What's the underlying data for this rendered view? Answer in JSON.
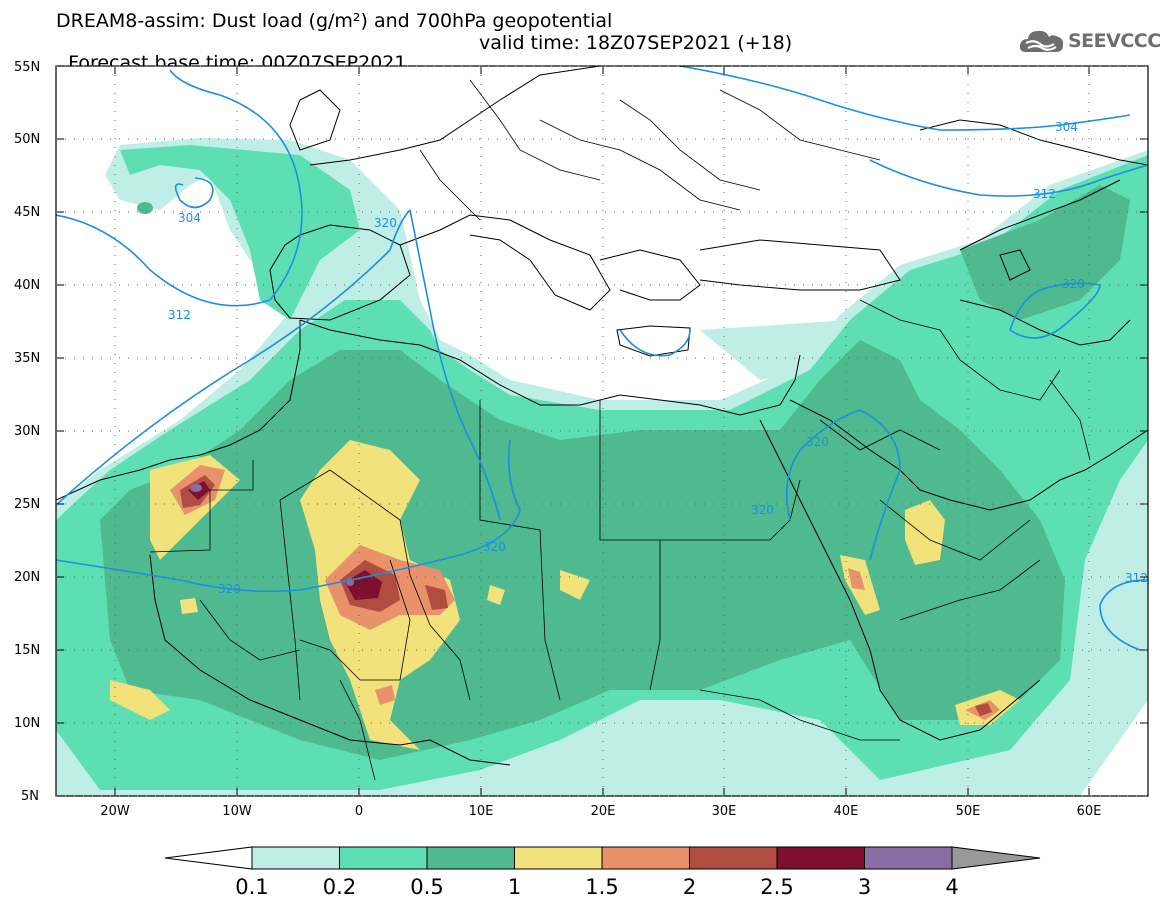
{
  "header": {
    "title_line1": "DREAM8-assim: Dust load (g/m²) and 700hPa geopotential",
    "base_time": "Forecast base time: 00Z07SEP2021",
    "valid_time": "valid time: 18Z07SEP2021 (+18)"
  },
  "logo": {
    "text": "SEEVCCC",
    "icon": "cloud-logo-icon"
  },
  "map": {
    "lat_labels": [
      "55N",
      "50N",
      "45N",
      "40N",
      "35N",
      "30N",
      "25N",
      "20N",
      "15N",
      "10N",
      "5N"
    ],
    "lon_labels": [
      "20W",
      "10W",
      "0",
      "10E",
      "20E",
      "30E",
      "40E",
      "50E",
      "60E"
    ],
    "contour_labels": [
      "304",
      "304",
      "312",
      "312",
      "312",
      "320",
      "320",
      "320",
      "320",
      "320"
    ]
  },
  "colorbar": {
    "levels": [
      "0.1",
      "0.2",
      "0.5",
      "1",
      "1.5",
      "2",
      "2.5",
      "3",
      "4"
    ],
    "colors": [
      "#bfeee6",
      "#5ddfb3",
      "#4fb98f",
      "#f1e27b",
      "#e9916a",
      "#b04c40",
      "#7e0f2e",
      "#8a6ea3"
    ],
    "under_color": "#ffffff",
    "over_color": "#999999"
  }
}
